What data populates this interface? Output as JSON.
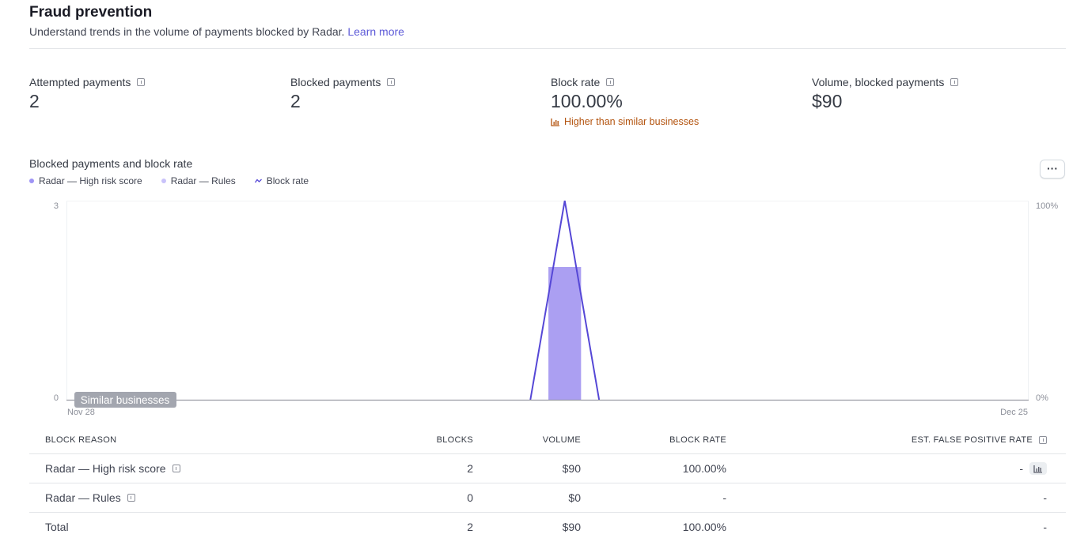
{
  "header": {
    "title": "Fraud prevention",
    "subtitle": "Understand trends in the volume of payments blocked by Radar.",
    "learn_more": "Learn more"
  },
  "metrics": [
    {
      "label": "Attempted payments",
      "value": "2"
    },
    {
      "label": "Blocked payments",
      "value": "2"
    },
    {
      "label": "Block rate",
      "value": "100.00%",
      "trend": "Higher than similar businesses"
    },
    {
      "label": "Volume, blocked payments",
      "value": "$90"
    }
  ],
  "chart": {
    "title": "Blocked payments and block rate",
    "more_label": "···",
    "legend": [
      {
        "label": "Radar — High risk score",
        "color": "#9f94f5"
      },
      {
        "label": "Radar — Rules",
        "color": "#c9c2fa"
      },
      {
        "label": "Block rate",
        "color": "#5547d6"
      }
    ],
    "similar_label": "Similar businesses"
  },
  "chart_data": {
    "type": "bar",
    "x_start": "Nov 28",
    "x_end": "Dec 25",
    "ylim": [
      0,
      3
    ],
    "y_ticks": [
      "0",
      "3"
    ],
    "y2lim": [
      0,
      100
    ],
    "y2_ticks": [
      "0%",
      "100%"
    ],
    "num_days": 28,
    "series": [
      {
        "name": "Radar — High risk score",
        "kind": "bar",
        "day_index": 14,
        "value": 2
      },
      {
        "name": "Radar — Rules",
        "kind": "bar",
        "day_index": 14,
        "value": 0
      },
      {
        "name": "Block rate",
        "kind": "line",
        "day_index": 14,
        "value": 100
      }
    ]
  },
  "table": {
    "headers": [
      "BLOCK REASON",
      "BLOCKS",
      "VOLUME",
      "BLOCK RATE",
      "EST. FALSE POSITIVE RATE"
    ],
    "rows": [
      {
        "reason": "Radar — High risk score",
        "blocks": "2",
        "volume": "$90",
        "rate": "100.00%",
        "fpr": "-"
      },
      {
        "reason": "Radar — Rules",
        "blocks": "0",
        "volume": "$0",
        "rate": "-",
        "fpr": "-"
      }
    ],
    "total": {
      "reason": "Total",
      "blocks": "2",
      "volume": "$90",
      "rate": "100.00%",
      "fpr": "-"
    }
  },
  "colors": {
    "accent": "#5e5bd8",
    "bar": "#ab9ff2",
    "line": "#5547d6",
    "trend": "#b3530e"
  }
}
